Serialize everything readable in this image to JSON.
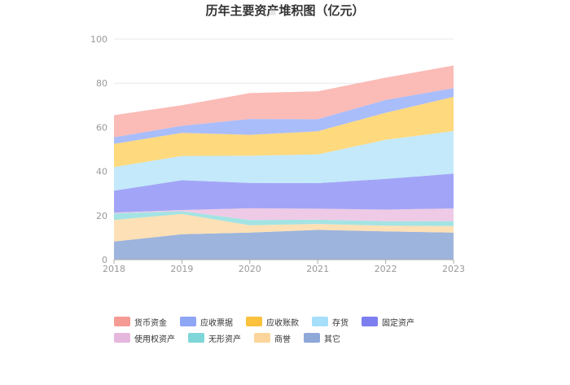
{
  "chart_data": {
    "type": "area",
    "stacked": true,
    "title": "历年主要资产堆积图（亿元）",
    "watermark": "源",
    "xlabel": "",
    "ylabel": "",
    "categories": [
      "2018",
      "2019",
      "2020",
      "2021",
      "2022",
      "2023"
    ],
    "ylim": [
      0,
      100
    ],
    "yticks": [
      0,
      20,
      40,
      60,
      80,
      100
    ],
    "grid": true,
    "legend_position": "bottom",
    "series": [
      {
        "name": "其它",
        "color": "#9db4dc",
        "values": [
          8.2,
          11.5,
          12.3,
          13.5,
          12.8,
          12.3
        ]
      },
      {
        "name": "商誉",
        "color": "#fde0b5",
        "values": [
          9.8,
          9.2,
          3.3,
          2.7,
          2.6,
          2.9
        ]
      },
      {
        "name": "无形资产",
        "color": "#a4e3e3",
        "values": [
          3.0,
          1.3,
          2.4,
          1.9,
          2.0,
          2.3
        ]
      },
      {
        "name": "使用权资产",
        "color": "#eecae6",
        "values": [
          0.3,
          0.5,
          5.3,
          5.0,
          5.3,
          5.7
        ]
      },
      {
        "name": "固定资产",
        "color": "#a2a5f7",
        "values": [
          10.0,
          13.5,
          11.5,
          11.6,
          13.9,
          15.8
        ]
      },
      {
        "name": "存货",
        "color": "#c3e9fb",
        "values": [
          10.7,
          11.0,
          12.3,
          13.0,
          17.7,
          19.3
        ]
      },
      {
        "name": "应收账款",
        "color": "#fed97e",
        "values": [
          10.5,
          10.5,
          9.5,
          10.5,
          12.3,
          15.5
        ]
      },
      {
        "name": "应收票据",
        "color": "#a9bdfb",
        "values": [
          3.0,
          3.2,
          7.2,
          5.5,
          5.8,
          4.0
        ]
      },
      {
        "name": "货币资金",
        "color": "#fbbbb6",
        "values": [
          10.0,
          9.3,
          11.7,
          12.6,
          10.1,
          10.2
        ]
      }
    ]
  },
  "legend": [
    {
      "name": "货币资金",
      "color": "#f59b94"
    },
    {
      "name": "应收票据",
      "color": "#8fa6f5"
    },
    {
      "name": "应收账款",
      "color": "#fcc23d"
    },
    {
      "name": "存货",
      "color": "#a6dffa"
    },
    {
      "name": "固定资产",
      "color": "#7d7ff0"
    },
    {
      "name": "使用权资产",
      "color": "#e6b7dd"
    },
    {
      "name": "无形资产",
      "color": "#7fd6d8"
    },
    {
      "name": "商誉",
      "color": "#fcd59c"
    },
    {
      "name": "其它",
      "color": "#8ea8d8"
    }
  ]
}
